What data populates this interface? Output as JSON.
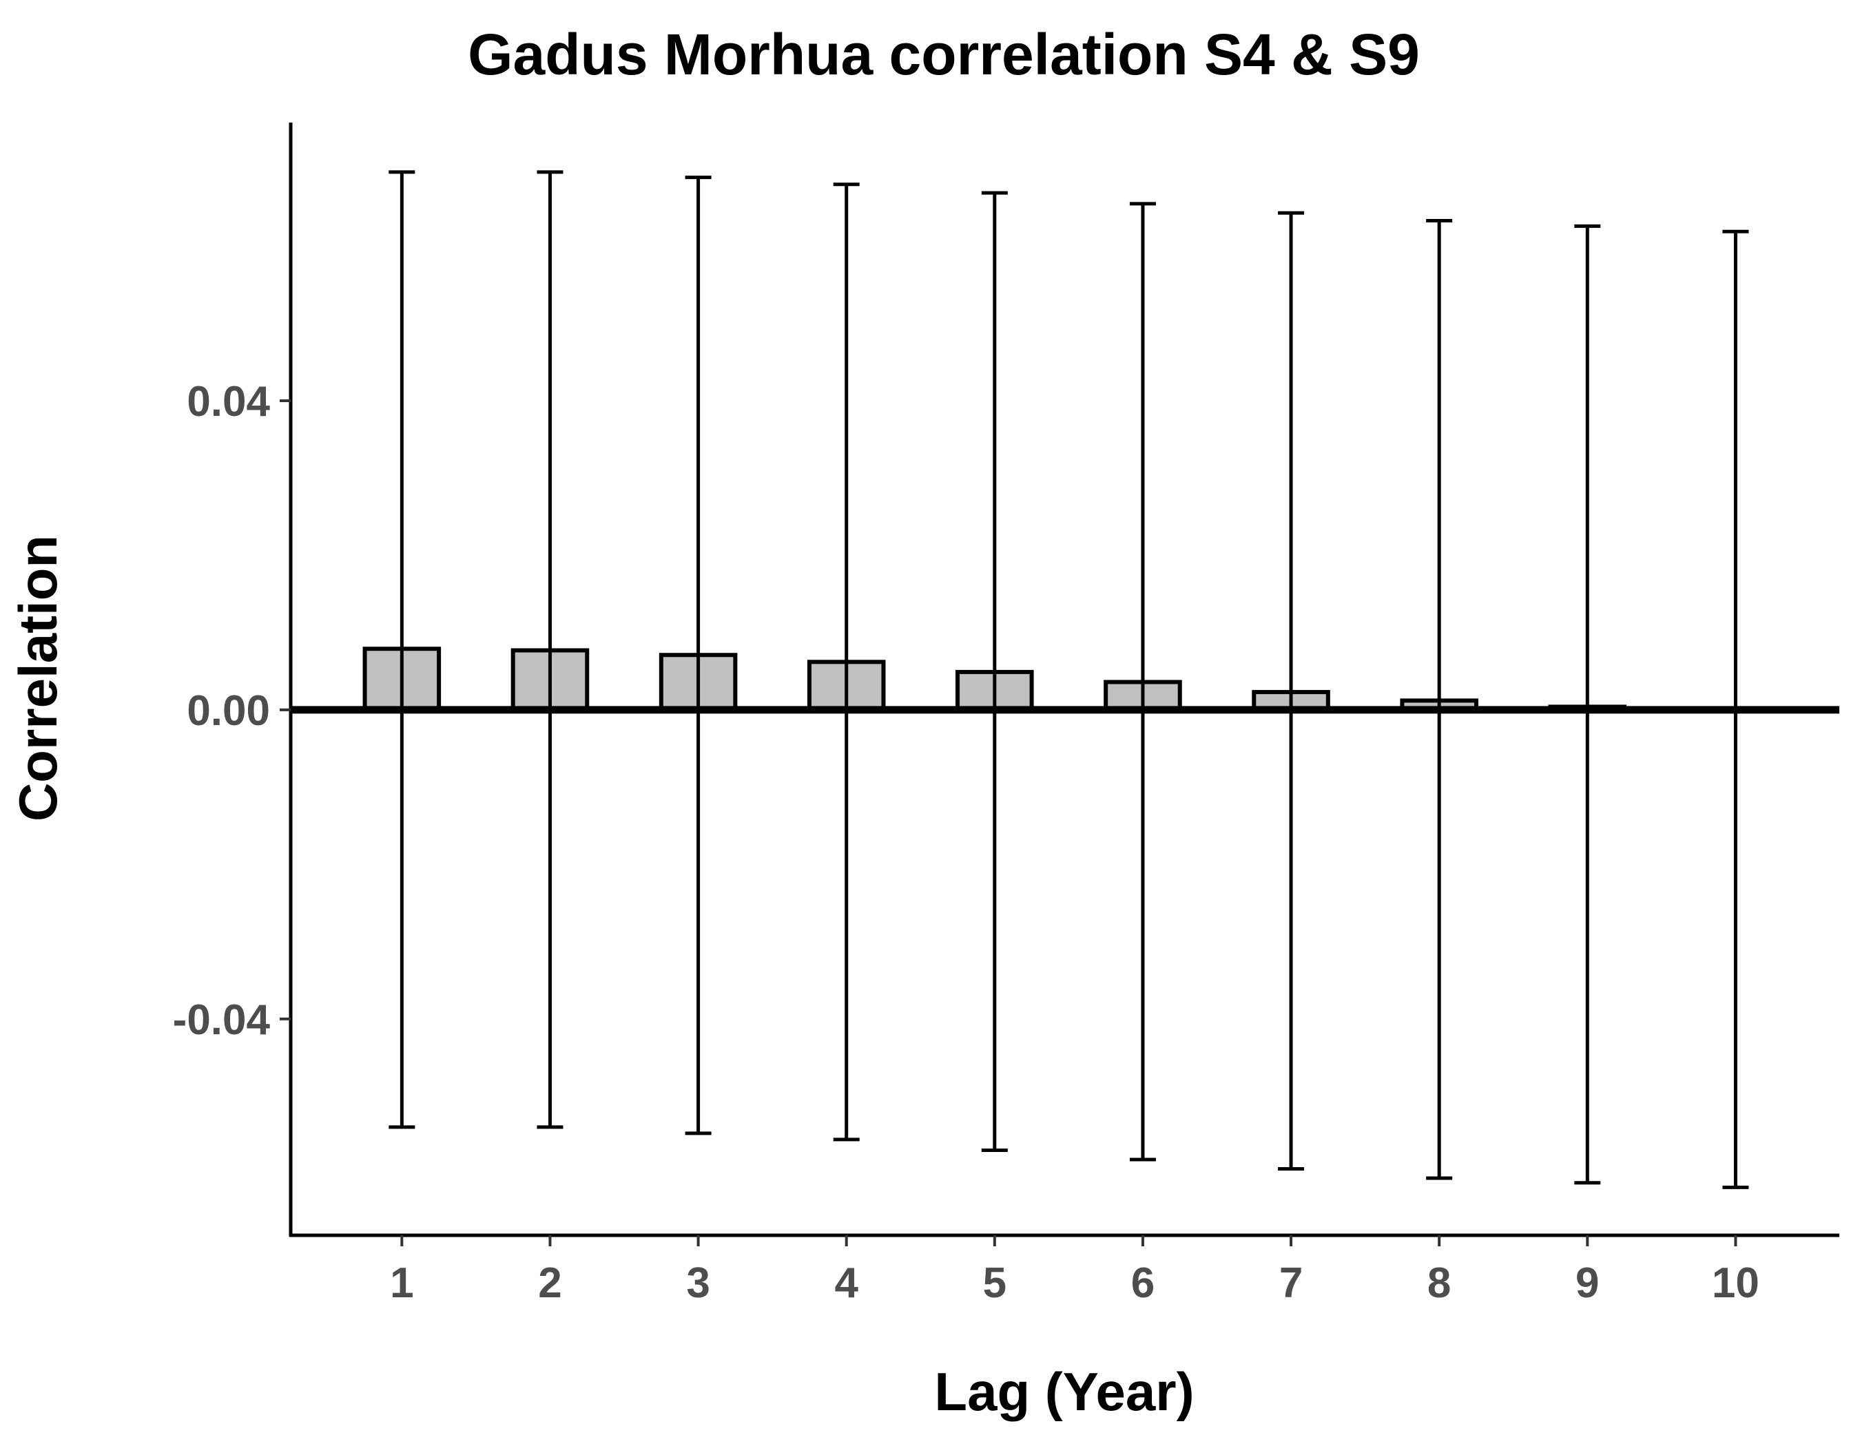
{
  "chart_data": {
    "type": "bar",
    "title": "Gadus Morhua correlation S4 & S9",
    "xlabel": "Lag (Year)",
    "ylabel": "Correlation",
    "categories": [
      "1",
      "2",
      "3",
      "4",
      "5",
      "6",
      "7",
      "8",
      "9",
      "10"
    ],
    "x": [
      1,
      2,
      3,
      4,
      5,
      6,
      7,
      8,
      9,
      10
    ],
    "values": [
      0.0079,
      0.0077,
      0.0071,
      0.0062,
      0.0049,
      0.0036,
      0.0023,
      0.0012,
      0.0004,
      0.0001
    ],
    "error_upper": [
      0.0696,
      0.0696,
      0.0689,
      0.068,
      0.0669,
      0.0655,
      0.0643,
      0.0633,
      0.0626,
      0.0619
    ],
    "error_lower": [
      -0.054,
      -0.054,
      -0.0548,
      -0.0556,
      -0.057,
      -0.0582,
      -0.0594,
      -0.0606,
      -0.0612,
      -0.0618
    ],
    "yticks": [
      -0.04,
      0.0,
      0.04
    ],
    "ytick_labels": [
      "-0.04",
      "0.00",
      "0.04"
    ],
    "ylim": [
      -0.068,
      0.076
    ],
    "xlim": [
      0.25,
      10.7
    ],
    "grid": false,
    "bar_fill": "#c0c0c0",
    "bar_stroke": "#000000",
    "zero_line_color": "#000000"
  }
}
